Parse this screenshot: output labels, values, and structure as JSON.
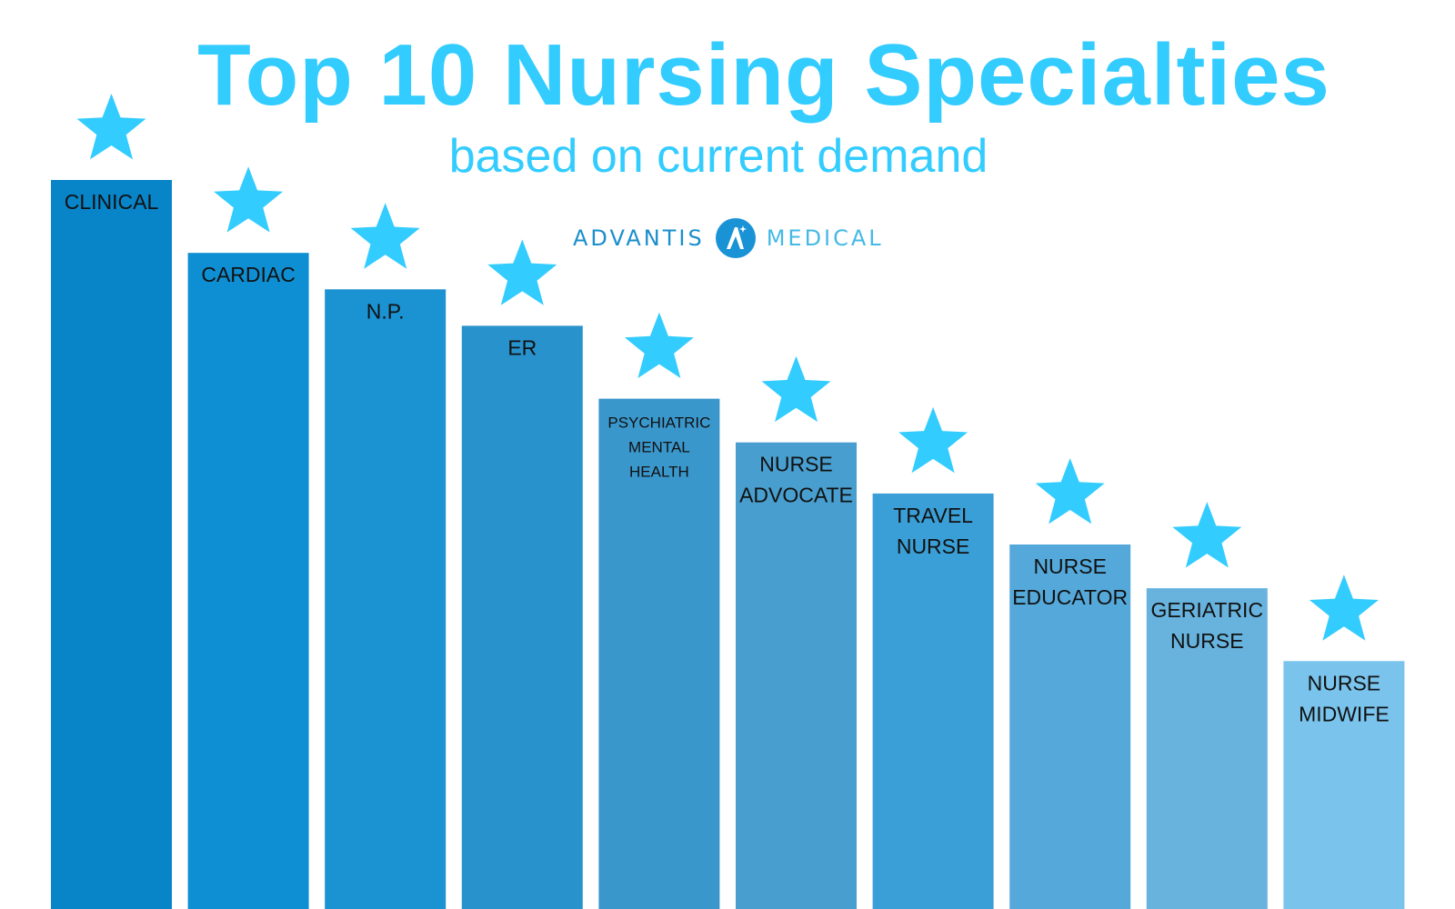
{
  "title": "Top 10 Nursing Specialties",
  "subtitle": "based on current demand",
  "brand": {
    "left": "ADVANTIS",
    "right": "MEDICAL",
    "logo_icon": "advantis-a-logo-icon"
  },
  "colors": {
    "title": "#33ccff",
    "star": "#33ccff",
    "label": "#111111"
  },
  "chart_data": {
    "type": "bar",
    "categories": [
      "CLINICAL",
      "CARDIAC",
      "N.P.",
      "ER",
      "PSYCHIATRIC MENTAL HEALTH",
      "NURSE ADVOCATE",
      "TRAVEL NURSE",
      "NURSE EDUCATOR",
      "GERIATRIC NURSE",
      "NURSE MIDWIFE"
    ],
    "labels": [
      [
        "CLINICAL"
      ],
      [
        "CARDIAC"
      ],
      [
        "N.P."
      ],
      [
        "ER"
      ],
      [
        "PSYCHIATRIC",
        "MENTAL",
        "HEALTH"
      ],
      [
        "NURSE",
        "ADVOCATE"
      ],
      [
        "TRAVEL",
        "NURSE"
      ],
      [
        "NURSE",
        "EDUCATOR"
      ],
      [
        "GERIATRIC",
        "NURSE"
      ],
      [
        "NURSE",
        "MIDWIFE"
      ]
    ],
    "values": [
      10,
      9,
      8.5,
      8,
      7,
      6.4,
      5.7,
      5,
      4.4,
      3.4
    ],
    "ylim": [
      0,
      10
    ],
    "bar_colors": [
      "#0884c8",
      "#0f8fd3",
      "#1b92d2",
      "#2892cd",
      "#3a97cc",
      "#489ece",
      "#3a9fd6",
      "#55a9da",
      "#67b3de",
      "#79c3ec"
    ],
    "grid": false,
    "xlabel": "",
    "ylabel": ""
  }
}
